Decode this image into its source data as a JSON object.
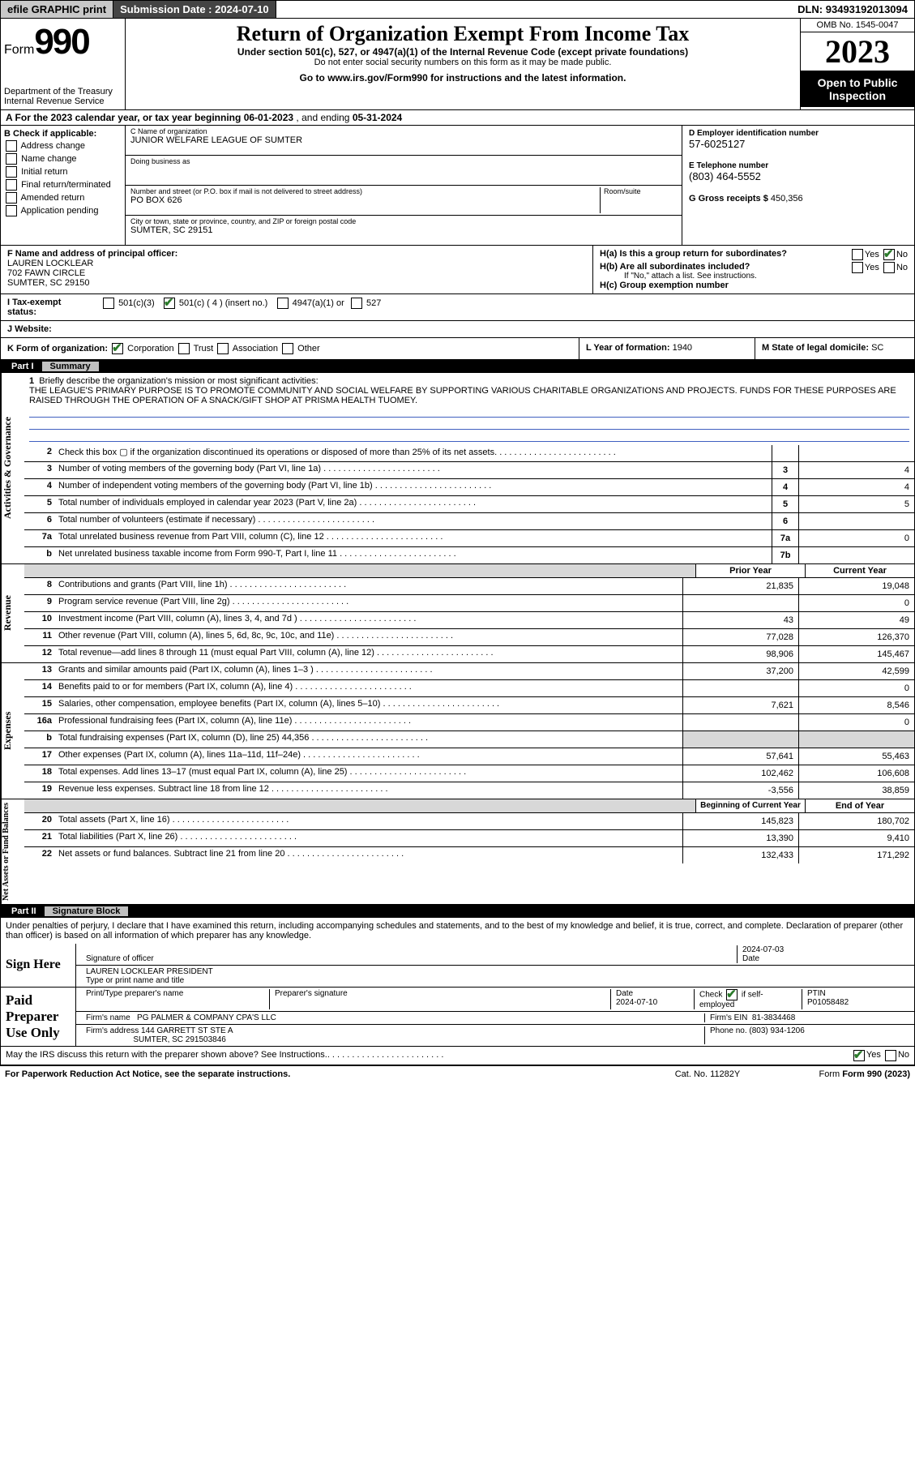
{
  "topbar": {
    "efile": "efile GRAPHIC print",
    "submission_label": "Submission Date :",
    "submission_date": "2024-07-10",
    "dln_label": "DLN:",
    "dln": "93493192013094"
  },
  "header": {
    "form_word": "Form",
    "form_num": "990",
    "dept1": "Department of the Treasury",
    "dept2": "Internal Revenue Service",
    "title": "Return of Organization Exempt From Income Tax",
    "subtitle": "Under section 501(c), 527, or 4947(a)(1) of the Internal Revenue Code (except private foundations)",
    "ssn_note": "Do not enter social security numbers on this form as it may be made public.",
    "goto": "Go to www.irs.gov/Form990 for instructions and the latest information.",
    "omb": "OMB No. 1545-0047",
    "year": "2023",
    "open_public": "Open to Public Inspection"
  },
  "line_a": {
    "prefix": "A For the 2023 calendar year, or tax year beginning",
    "begin": "06-01-2023",
    "mid": ", and ending",
    "end": "05-31-2024"
  },
  "box_b": {
    "label": "B Check if applicable:",
    "items": [
      "Address change",
      "Name change",
      "Initial return",
      "Final return/terminated",
      "Amended return",
      "Application pending"
    ]
  },
  "box_c": {
    "name_label": "C Name of organization",
    "name": "JUNIOR WELFARE LEAGUE OF SUMTER",
    "dba_label": "Doing business as",
    "addr_label": "Number and street (or P.O. box if mail is not delivered to street address)",
    "room_label": "Room/suite",
    "addr": "PO BOX 626",
    "city_label": "City or town, state or province, country, and ZIP or foreign postal code",
    "city": "SUMTER, SC  29151"
  },
  "box_d": {
    "label": "D Employer identification number",
    "value": "57-6025127"
  },
  "box_e": {
    "label": "E Telephone number",
    "value": "(803) 464-5552"
  },
  "box_g": {
    "label": "G Gross receipts $",
    "value": "450,356"
  },
  "box_f": {
    "label": "F Name and address of principal officer:",
    "name": "LAUREN LOCKLEAR",
    "addr1": "702 FAWN CIRCLE",
    "addr2": "SUMTER, SC  29150"
  },
  "box_h": {
    "ha": "H(a)  Is this a group return for subordinates?",
    "hb": "H(b)  Are all subordinates included?",
    "hb_note": "If \"No,\" attach a list. See instructions.",
    "hc": "H(c)  Group exemption number",
    "yes": "Yes",
    "no": "No"
  },
  "line_i": {
    "label": "I  Tax-exempt status:",
    "o1": "501(c)(3)",
    "o2": "501(c) ( 4 ) (insert no.)",
    "o3": "4947(a)(1) or",
    "o4": "527"
  },
  "line_j": {
    "label": "J  Website:"
  },
  "line_k": {
    "label": "K Form of organization:",
    "o1": "Corporation",
    "o2": "Trust",
    "o3": "Association",
    "o4": "Other"
  },
  "line_l": {
    "label": "L Year of formation:",
    "value": "1940"
  },
  "line_m": {
    "label": "M State of legal domicile:",
    "value": "SC"
  },
  "part1": {
    "num": "Part I",
    "title": "Summary"
  },
  "mission": {
    "num": "1",
    "label": "Briefly describe the organization's mission or most significant activities:",
    "text": "THE LEAGUE'S PRIMARY PURPOSE IS TO PROMOTE COMMUNITY AND SOCIAL WELFARE BY SUPPORTING VARIOUS CHARITABLE ORGANIZATIONS AND PROJECTS. FUNDS FOR THESE PURPOSES ARE RAISED THROUGH THE OPERATION OF A SNACK/GIFT SHOP AT PRISMA HEALTH TUOMEY."
  },
  "gov_lines": [
    {
      "n": "2",
      "d": "Check this box ▢ if the organization discontinued its operations or disposed of more than 25% of its net assets.",
      "b": "",
      "v": ""
    },
    {
      "n": "3",
      "d": "Number of voting members of the governing body (Part VI, line 1a)",
      "b": "3",
      "v": "4"
    },
    {
      "n": "4",
      "d": "Number of independent voting members of the governing body (Part VI, line 1b)",
      "b": "4",
      "v": "4"
    },
    {
      "n": "5",
      "d": "Total number of individuals employed in calendar year 2023 (Part V, line 2a)",
      "b": "5",
      "v": "5"
    },
    {
      "n": "6",
      "d": "Total number of volunteers (estimate if necessary)",
      "b": "6",
      "v": ""
    },
    {
      "n": "7a",
      "d": "Total unrelated business revenue from Part VIII, column (C), line 12",
      "b": "7a",
      "v": "0"
    },
    {
      "n": "b",
      "d": "Net unrelated business taxable income from Form 990-T, Part I, line 11",
      "b": "7b",
      "v": ""
    }
  ],
  "cols": {
    "prior": "Prior Year",
    "current": "Current Year",
    "boc": "Beginning of Current Year",
    "eoy": "End of Year"
  },
  "revenue": [
    {
      "n": "8",
      "d": "Contributions and grants (Part VIII, line 1h)",
      "p": "21,835",
      "c": "19,048"
    },
    {
      "n": "9",
      "d": "Program service revenue (Part VIII, line 2g)",
      "p": "",
      "c": "0"
    },
    {
      "n": "10",
      "d": "Investment income (Part VIII, column (A), lines 3, 4, and 7d )",
      "p": "43",
      "c": "49"
    },
    {
      "n": "11",
      "d": "Other revenue (Part VIII, column (A), lines 5, 6d, 8c, 9c, 10c, and 11e)",
      "p": "77,028",
      "c": "126,370"
    },
    {
      "n": "12",
      "d": "Total revenue—add lines 8 through 11 (must equal Part VIII, column (A), line 12)",
      "p": "98,906",
      "c": "145,467"
    }
  ],
  "expenses": [
    {
      "n": "13",
      "d": "Grants and similar amounts paid (Part IX, column (A), lines 1–3 )",
      "p": "37,200",
      "c": "42,599"
    },
    {
      "n": "14",
      "d": "Benefits paid to or for members (Part IX, column (A), line 4)",
      "p": "",
      "c": "0"
    },
    {
      "n": "15",
      "d": "Salaries, other compensation, employee benefits (Part IX, column (A), lines 5–10)",
      "p": "7,621",
      "c": "8,546"
    },
    {
      "n": "16a",
      "d": "Professional fundraising fees (Part IX, column (A), line 11e)",
      "p": "",
      "c": "0"
    },
    {
      "n": "b",
      "d": "Total fundraising expenses (Part IX, column (D), line 25) 44,356",
      "p": "shade",
      "c": "shade"
    },
    {
      "n": "17",
      "d": "Other expenses (Part IX, column (A), lines 11a–11d, 11f–24e)",
      "p": "57,641",
      "c": "55,463"
    },
    {
      "n": "18",
      "d": "Total expenses. Add lines 13–17 (must equal Part IX, column (A), line 25)",
      "p": "102,462",
      "c": "106,608"
    },
    {
      "n": "19",
      "d": "Revenue less expenses. Subtract line 18 from line 12",
      "p": "-3,556",
      "c": "38,859"
    }
  ],
  "netassets": [
    {
      "n": "20",
      "d": "Total assets (Part X, line 16)",
      "p": "145,823",
      "c": "180,702"
    },
    {
      "n": "21",
      "d": "Total liabilities (Part X, line 26)",
      "p": "13,390",
      "c": "9,410"
    },
    {
      "n": "22",
      "d": "Net assets or fund balances. Subtract line 21 from line 20",
      "p": "132,433",
      "c": "171,292"
    }
  ],
  "sides": {
    "gov": "Activities & Governance",
    "rev": "Revenue",
    "exp": "Expenses",
    "net": "Net Assets or Fund Balances"
  },
  "part2": {
    "num": "Part II",
    "title": "Signature Block"
  },
  "perjury": "Under penalties of perjury, I declare that I have examined this return, including accompanying schedules and statements, and to the best of my knowledge and belief, it is true, correct, and complete. Declaration of preparer (other than officer) is based on all information of which preparer has any knowledge.",
  "sign": {
    "here": "Sign Here",
    "sig_label": "Signature of officer",
    "date_label": "Date",
    "date": "2024-07-03",
    "name_label": "Type or print name and title",
    "name": "LAUREN LOCKLEAR  PRESIDENT"
  },
  "paid": {
    "label": "Paid Preparer Use Only",
    "h1": "Print/Type preparer's name",
    "h2": "Preparer's signature",
    "h3": "Date",
    "date": "2024-07-10",
    "check_label": "Check",
    "self": "if self-employed",
    "ptin_label": "PTIN",
    "ptin": "P01058482",
    "firm_name_label": "Firm's name",
    "firm_name": "PG PALMER & COMPANY CPA'S LLC",
    "firm_ein_label": "Firm's EIN",
    "firm_ein": "81-3834468",
    "firm_addr_label": "Firm's address",
    "firm_addr1": "144 GARRETT ST STE A",
    "firm_addr2": "SUMTER, SC  291503846",
    "phone_label": "Phone no.",
    "phone": "(803) 934-1206"
  },
  "discuss": "May the IRS discuss this return with the preparer shown above? See Instructions.",
  "footer": {
    "left": "For Paperwork Reduction Act Notice, see the separate instructions.",
    "mid": "Cat. No. 11282Y",
    "right": "Form 990 (2023)"
  },
  "yes": "Yes",
  "no": "No"
}
